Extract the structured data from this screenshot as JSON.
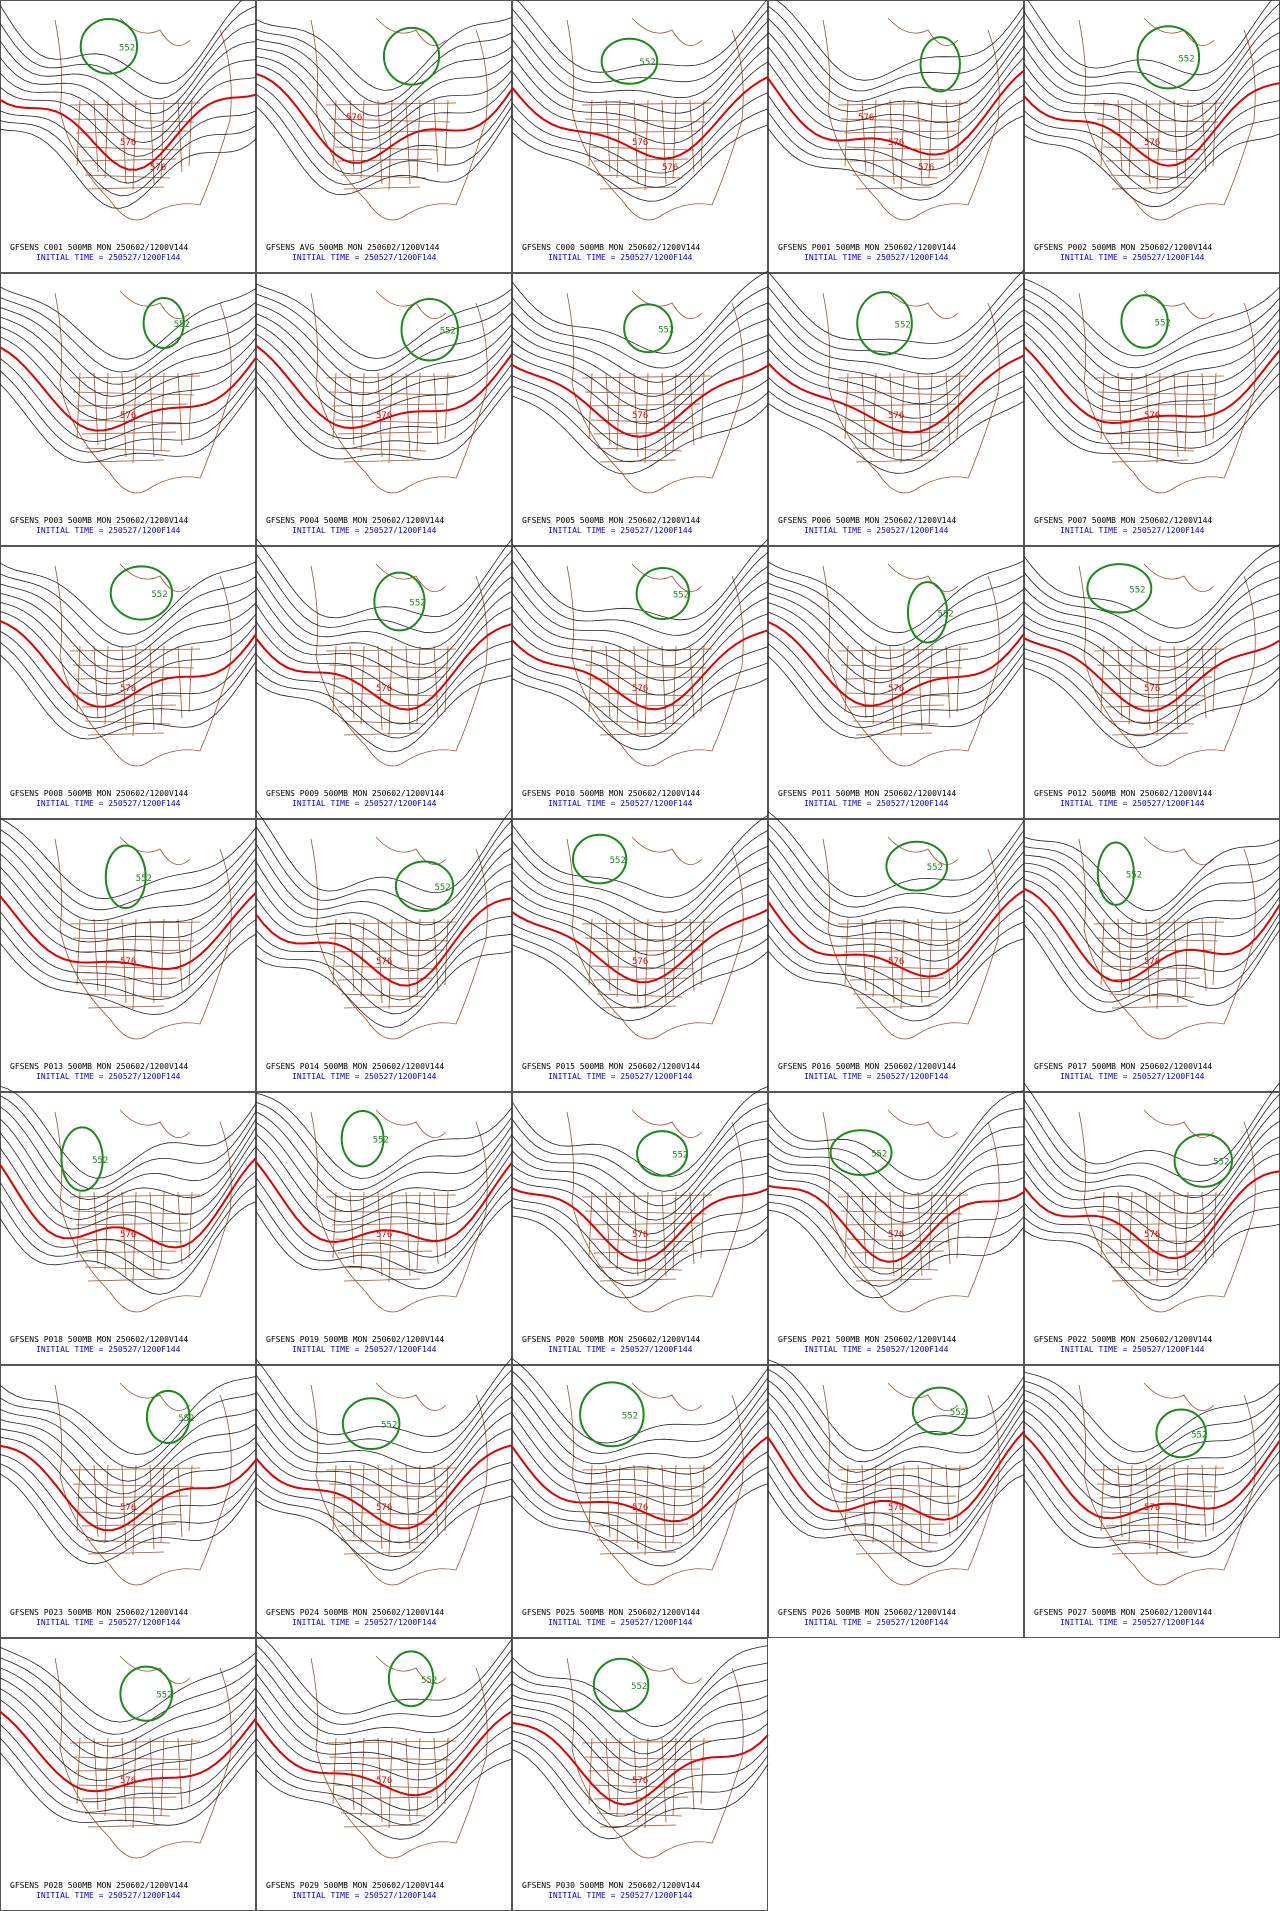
{
  "panels": [
    {
      "title": "GFSENS C001 500MB MON 250602/1200V144",
      "init": "INITIAL TIME = 250527/1200F144",
      "contour_labels": [
        "552",
        "576",
        "576"
      ]
    },
    {
      "title": "GFSENS AVG 500MB MON 250602/1200V144",
      "init": "INITIAL TIME = 250527/1200F144",
      "contour_labels": [
        "576"
      ]
    },
    {
      "title": "GFSENS C000 500MB MON 250602/1200V144",
      "init": "INITIAL TIME = 250527/1200F144",
      "contour_labels": [
        "552",
        "576",
        "576"
      ]
    },
    {
      "title": "GFSENS P001 500MB MON 250602/1200V144",
      "init": "INITIAL TIME = 250527/1200F144",
      "contour_labels": [
        "576",
        "576",
        "576"
      ]
    },
    {
      "title": "GFSENS P002 500MB MON 250602/1200V144",
      "init": "INITIAL TIME = 250527/1200F144",
      "contour_labels": [
        "552",
        "576"
      ]
    },
    {
      "title": "GFSENS P003 500MB MON 250602/1200V144",
      "init": "INITIAL TIME = 250527/1200F144",
      "contour_labels": [
        "552",
        "576"
      ]
    },
    {
      "title": "GFSENS P004 500MB MON 250602/1200V144",
      "init": "INITIAL TIME = 250527/1200F144",
      "contour_labels": [
        "552",
        "576"
      ]
    },
    {
      "title": "GFSENS P005 500MB MON 250602/1200V144",
      "init": "INITIAL TIME = 250527/1200F144",
      "contour_labels": [
        "552",
        "576"
      ]
    },
    {
      "title": "GFSENS P006 500MB MON 250602/1200V144",
      "init": "INITIAL TIME = 250527/1200F144",
      "contour_labels": [
        "552",
        "576"
      ]
    },
    {
      "title": "GFSENS P007 500MB MON 250602/1200V144",
      "init": "INITIAL TIME = 250527/1200F144",
      "contour_labels": [
        "552",
        "576"
      ]
    },
    {
      "title": "GFSENS P008 500MB MON 250602/1200V144",
      "init": "INITIAL TIME = 250527/1200F144",
      "contour_labels": [
        "552",
        "576"
      ]
    },
    {
      "title": "GFSENS P009 500MB MON 250602/1200V144",
      "init": "INITIAL TIME = 250527/1200F144",
      "contour_labels": [
        "552",
        "576"
      ]
    },
    {
      "title": "GFSENS P010 500MB MON 250602/1200V144",
      "init": "INITIAL TIME = 250527/1200F144",
      "contour_labels": [
        "552",
        "576"
      ]
    },
    {
      "title": "GFSENS P011 500MB MON 250602/1200V144",
      "init": "INITIAL TIME = 250527/1200F144",
      "contour_labels": [
        "552",
        "576"
      ]
    },
    {
      "title": "GFSENS P012 500MB MON 250602/1200V144",
      "init": "INITIAL TIME = 250527/1200F144",
      "contour_labels": [
        "552",
        "576"
      ]
    },
    {
      "title": "GFSENS P013 500MB MON 250602/1200V144",
      "init": "INITIAL TIME = 250527/1200F144",
      "contour_labels": [
        "552",
        "576"
      ]
    },
    {
      "title": "GFSENS P014 500MB MON 250602/1200V144",
      "init": "INITIAL TIME = 250527/1200F144",
      "contour_labels": [
        "552",
        "576"
      ]
    },
    {
      "title": "GFSENS P015 500MB MON 250602/1200V144",
      "init": "INITIAL TIME = 250527/1200F144",
      "contour_labels": [
        "552",
        "576"
      ]
    },
    {
      "title": "GFSENS P016 500MB MON 250602/1200V144",
      "init": "INITIAL TIME = 250527/1200F144",
      "contour_labels": [
        "552",
        "576"
      ]
    },
    {
      "title": "GFSENS P017 500MB MON 250602/1200V144",
      "init": "INITIAL TIME = 250527/1200F144",
      "contour_labels": [
        "552",
        "576"
      ]
    },
    {
      "title": "GFSENS P018 500MB MON 250602/1200V144",
      "init": "INITIAL TIME = 250527/1200F144",
      "contour_labels": [
        "552",
        "576"
      ]
    },
    {
      "title": "GFSENS P019 500MB MON 250602/1200V144",
      "init": "INITIAL TIME = 250527/1200F144",
      "contour_labels": [
        "552",
        "576"
      ]
    },
    {
      "title": "GFSENS P020 500MB MON 250602/1200V144",
      "init": "INITIAL TIME = 250527/1200F144",
      "contour_labels": [
        "552",
        "576"
      ]
    },
    {
      "title": "GFSENS P021 500MB MON 250602/1200V144",
      "init": "INITIAL TIME = 250527/1200F144",
      "contour_labels": [
        "552",
        "576"
      ]
    },
    {
      "title": "GFSENS P022 500MB MON 250602/1200V144",
      "init": "INITIAL TIME = 250527/1200F144",
      "contour_labels": [
        "552",
        "576"
      ]
    },
    {
      "title": "GFSENS P023 500MB MON 250602/1200V144",
      "init": "INITIAL TIME = 250527/1200F144",
      "contour_labels": [
        "552",
        "576"
      ]
    },
    {
      "title": "GFSENS P024 500MB MON 250602/1200V144",
      "init": "INITIAL TIME = 250527/1200F144",
      "contour_labels": [
        "552",
        "576"
      ]
    },
    {
      "title": "GFSENS P025 500MB MON 250602/1200V144",
      "init": "INITIAL TIME = 250527/1200F144",
      "contour_labels": [
        "552",
        "576"
      ]
    },
    {
      "title": "GFSENS P026 500MB MON 250602/1200V144",
      "init": "INITIAL TIME = 250527/1200F144",
      "contour_labels": [
        "552",
        "576"
      ]
    },
    {
      "title": "GFSENS P027 500MB MON 250602/1200V144",
      "init": "INITIAL TIME = 250527/1200F144",
      "contour_labels": [
        "552",
        "576"
      ]
    },
    {
      "title": "GFSENS P028 500MB MON 250602/1200V144",
      "init": "INITIAL TIME = 250527/1200F144",
      "contour_labels": [
        "552",
        "576"
      ]
    },
    {
      "title": "GFSENS P029 500MB MON 250602/1200V144",
      "init": "INITIAL TIME = 250527/1200F144",
      "contour_labels": [
        "552",
        "576"
      ]
    },
    {
      "title": "GFSENS P030 500MB MON 250602/1200V144",
      "init": "INITIAL TIME = 250527/1200F144",
      "contour_labels": [
        "552",
        "576"
      ]
    }
  ]
}
